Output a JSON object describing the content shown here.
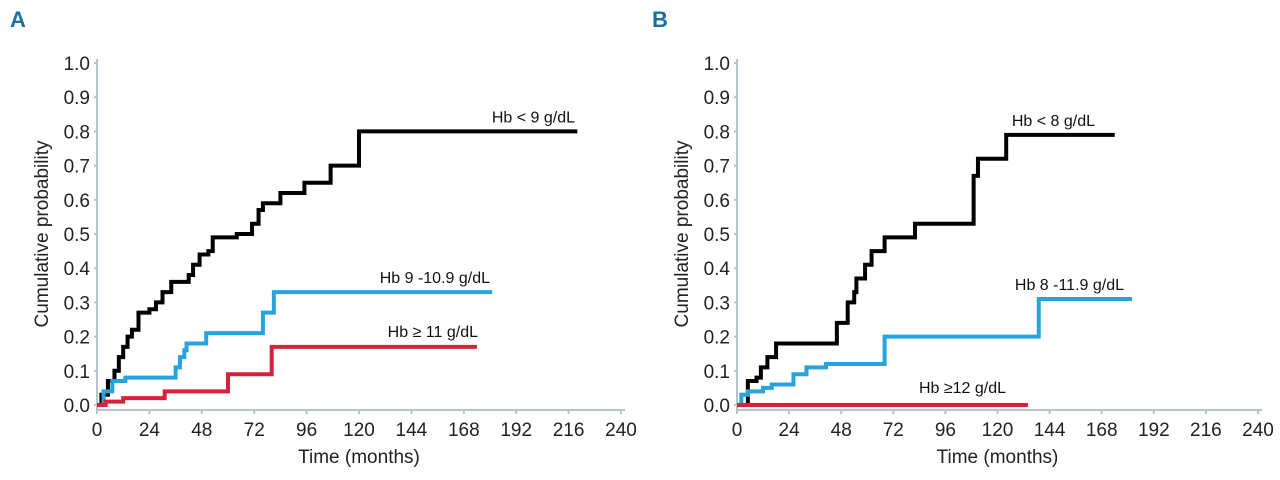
{
  "chart_data": [
    {
      "panel_label": "A",
      "type": "line",
      "step": true,
      "xlabel": "Time (months)",
      "ylabel": "Cumulative probability",
      "xlim": [
        0,
        240
      ],
      "ylim": [
        0,
        1
      ],
      "xticks": [
        "0",
        "24",
        "48",
        "72",
        "96",
        "120",
        "144",
        "168",
        "192",
        "216",
        "240"
      ],
      "yticks": [
        "0.0",
        "0.1",
        "0.2",
        "0.3",
        "0.4",
        "0.5",
        "0.6",
        "0.7",
        "0.8",
        "0.9",
        "1.0"
      ],
      "grid": false,
      "series": [
        {
          "name": "Hb < 9 g/dL",
          "color": "#000000",
          "points": [
            [
              0,
              0
            ],
            [
              2,
              0.03
            ],
            [
              5,
              0.07
            ],
            [
              8,
              0.1
            ],
            [
              10,
              0.14
            ],
            [
              12,
              0.17
            ],
            [
              14,
              0.2
            ],
            [
              16,
              0.22
            ],
            [
              19,
              0.27
            ],
            [
              24,
              0.28
            ],
            [
              27,
              0.3
            ],
            [
              30,
              0.33
            ],
            [
              34,
              0.36
            ],
            [
              42,
              0.38
            ],
            [
              44,
              0.41
            ],
            [
              47,
              0.44
            ],
            [
              51,
              0.45
            ],
            [
              53,
              0.49
            ],
            [
              64,
              0.5
            ],
            [
              71,
              0.53
            ],
            [
              74,
              0.57
            ],
            [
              76,
              0.59
            ],
            [
              84,
              0.62
            ],
            [
              95,
              0.65
            ],
            [
              107,
              0.7
            ],
            [
              120,
              0.8
            ],
            [
              220,
              0.8
            ]
          ]
        },
        {
          "name": "Hb 9 -10.9 g/dL",
          "color": "#29a3dd",
          "points": [
            [
              0,
              0
            ],
            [
              3,
              0.04
            ],
            [
              7,
              0.07
            ],
            [
              13,
              0.08
            ],
            [
              35,
              0.08
            ],
            [
              36,
              0.11
            ],
            [
              38,
              0.14
            ],
            [
              40,
              0.16
            ],
            [
              41,
              0.18
            ],
            [
              48,
              0.18
            ],
            [
              50,
              0.21
            ],
            [
              75,
              0.21
            ],
            [
              76,
              0.27
            ],
            [
              80,
              0.27
            ],
            [
              81,
              0.33
            ],
            [
              181,
              0.33
            ]
          ]
        },
        {
          "name": "Hb ≥ 11 g/dL",
          "color": "#d8203a",
          "points": [
            [
              0,
              0
            ],
            [
              4,
              0.01
            ],
            [
              11,
              0.01
            ],
            [
              12,
              0.02
            ],
            [
              30,
              0.02
            ],
            [
              31,
              0.04
            ],
            [
              59,
              0.04
            ],
            [
              60,
              0.09
            ],
            [
              79,
              0.09
            ],
            [
              80,
              0.17
            ],
            [
              174,
              0.17
            ]
          ]
        }
      ]
    },
    {
      "panel_label": "B",
      "type": "line",
      "step": true,
      "xlabel": "Time (months)",
      "ylabel": "Cumulative probability",
      "xlim": [
        0,
        240
      ],
      "ylim": [
        0,
        1
      ],
      "xticks": [
        "0",
        "24",
        "48",
        "72",
        "96",
        "120",
        "144",
        "168",
        "192",
        "216",
        "240"
      ],
      "yticks": [
        "0.0",
        "0.1",
        "0.2",
        "0.3",
        "0.4",
        "0.5",
        "0.6",
        "0.7",
        "0.8",
        "0.9",
        "1.0"
      ],
      "grid": false,
      "series": [
        {
          "name": "Hb < 8 g/dL",
          "color": "#000000",
          "points": [
            [
              0,
              0
            ],
            [
              4,
              0
            ],
            [
              5,
              0.07
            ],
            [
              9,
              0.08
            ],
            [
              11,
              0.11
            ],
            [
              14,
              0.14
            ],
            [
              18,
              0.18
            ],
            [
              45,
              0.18
            ],
            [
              46,
              0.24
            ],
            [
              50,
              0.24
            ],
            [
              51,
              0.3
            ],
            [
              54,
              0.33
            ],
            [
              55,
              0.37
            ],
            [
              59,
              0.41
            ],
            [
              62,
              0.45
            ],
            [
              68,
              0.49
            ],
            [
              82,
              0.53
            ],
            [
              108,
              0.53
            ],
            [
              109,
              0.67
            ],
            [
              111,
              0.72
            ],
            [
              124,
              0.79
            ],
            [
              174,
              0.79
            ]
          ]
        },
        {
          "name": "Hb 8 -11.9 g/dL",
          "color": "#29a3dd",
          "points": [
            [
              0,
              0
            ],
            [
              2,
              0.03
            ],
            [
              5,
              0.04
            ],
            [
              12,
              0.05
            ],
            [
              16,
              0.06
            ],
            [
              24,
              0.06
            ],
            [
              26,
              0.09
            ],
            [
              32,
              0.11
            ],
            [
              41,
              0.12
            ],
            [
              67,
              0.12
            ],
            [
              68,
              0.2
            ],
            [
              138,
              0.2
            ],
            [
              139,
              0.31
            ],
            [
              182,
              0.31
            ]
          ]
        },
        {
          "name": "Hb ≥12 g/dL",
          "color": "#d8203a",
          "points": [
            [
              0,
              0
            ],
            [
              134,
              0
            ]
          ]
        }
      ]
    }
  ]
}
